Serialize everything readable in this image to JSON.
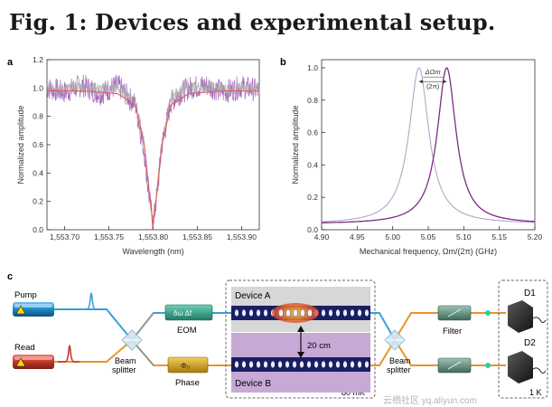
{
  "figure_title": "Fig. 1: Devices and experimental setup.",
  "watermark": "云栖社区 yq.aliyun.com",
  "chart_data": [
    {
      "panel": "a",
      "type": "line",
      "xlabel": "Wavelength (nm)",
      "ylabel": "Normalized amplitude",
      "xlim": [
        1553.68,
        1553.92
      ],
      "ylim": [
        0.0,
        1.2
      ],
      "xticks": [
        "1,553.70",
        "1,553.75",
        "1,553.80",
        "1,553.85",
        "1,553.90"
      ],
      "xtick_values": [
        1553.7,
        1553.75,
        1553.8,
        1553.85,
        1553.9
      ],
      "yticks": [
        "0.0",
        "0.2",
        "0.4",
        "0.6",
        "0.8",
        "1.0",
        "1.2"
      ],
      "ytick_values": [
        0.0,
        0.2,
        0.4,
        0.6,
        0.8,
        1.0,
        1.2
      ],
      "grid": false,
      "series": [
        {
          "color": "#9b59b6",
          "style": "noisy-data",
          "x": [
            1553.68,
            1553.7,
            1553.72,
            1553.74,
            1553.76,
            1553.77,
            1553.78,
            1553.79,
            1553.795,
            1553.8,
            1553.805,
            1553.81,
            1553.82,
            1553.83,
            1553.84,
            1553.86,
            1553.88,
            1553.9,
            1553.92
          ],
          "y": [
            1.0,
            0.97,
            1.02,
            0.96,
            1.02,
            0.95,
            0.88,
            0.55,
            0.25,
            0.04,
            0.28,
            0.6,
            0.9,
            0.96,
            1.0,
            1.02,
            0.97,
            1.01,
            0.98
          ]
        },
        {
          "color": "#aaaaaa",
          "style": "noisy-data",
          "x": [
            1553.68,
            1553.7,
            1553.72,
            1553.74,
            1553.76,
            1553.77,
            1553.78,
            1553.79,
            1553.795,
            1553.8,
            1553.805,
            1553.81,
            1553.82,
            1553.83,
            1553.84,
            1553.86,
            1553.88,
            1553.9,
            1553.92
          ],
          "y": [
            1.0,
            0.99,
            1.01,
            0.99,
            1.0,
            0.97,
            0.9,
            0.6,
            0.3,
            0.06,
            0.32,
            0.62,
            0.92,
            0.98,
            1.0,
            1.01,
            0.99,
            1.0,
            1.0
          ]
        },
        {
          "color": "#e05a5a",
          "style": "fit",
          "x": [
            1553.68,
            1553.72,
            1553.76,
            1553.78,
            1553.79,
            1553.795,
            1553.8,
            1553.805,
            1553.81,
            1553.82,
            1553.84,
            1553.88,
            1553.92
          ],
          "y": [
            0.98,
            0.98,
            0.96,
            0.88,
            0.6,
            0.3,
            0.03,
            0.3,
            0.6,
            0.88,
            0.96,
            0.98,
            0.98
          ]
        }
      ]
    },
    {
      "panel": "b",
      "type": "line",
      "xlabel": "Mechanical frequency, Ωm/(2π) (GHz)",
      "ylabel": "Normalized amplitude",
      "xlim": [
        4.9,
        5.2
      ],
      "ylim": [
        0.0,
        1.05
      ],
      "xticks": [
        "4.90",
        "4.95",
        "5.00",
        "5.05",
        "5.10",
        "5.15",
        "5.20"
      ],
      "xtick_values": [
        4.9,
        4.95,
        5.0,
        5.05,
        5.1,
        5.15,
        5.2
      ],
      "yticks": [
        "0.0",
        "0.2",
        "0.4",
        "0.6",
        "0.8",
        "1.0"
      ],
      "ytick_values": [
        0.0,
        0.2,
        0.4,
        0.6,
        0.8,
        1.0
      ],
      "grid": false,
      "annotation": {
        "numerator": "ΔΩm",
        "denominator": "(2π)",
        "x_from": 5.037,
        "x_to": 5.076,
        "y": 0.915
      },
      "series": [
        {
          "color": "#b9a3c8",
          "x0": 5.037,
          "hwhm": 0.017,
          "floor": 0.035
        },
        {
          "color": "#7a2d82",
          "x0": 5.076,
          "hwhm": 0.016,
          "floor": 0.035
        }
      ]
    }
  ],
  "setup_diagram": {
    "panel_label": "c",
    "pump_label": "Pump",
    "read_label": "Read",
    "beam_splitter_left": [
      "Beam",
      "splitter"
    ],
    "beam_splitter_right": [
      "Beam",
      "splitter"
    ],
    "eom_symbol": "δω  Δf",
    "eom_label": "EOM",
    "phase_symbol": "Φ₀",
    "phase_label": "Phase",
    "device_a_label": "Device A",
    "device_b_label": "Device B",
    "separation_label": "20 cm",
    "temp_inner": "80 mK",
    "filter_label": "Filter",
    "detector_1": "D1",
    "detector_2": "D2",
    "temp_outer": "1 K",
    "colors": {
      "pump_laser": "#1e88c8",
      "read_laser": "#c0392b",
      "eom": "#2e9e86",
      "phase": "#d6a520",
      "filter": "#5a8a7a",
      "device_a_bg": "#d7d7d7",
      "device_b_bg": "#c7a9d6",
      "waveguide": "#1a1f63",
      "detector": "#2b2b2b",
      "beam_top": "#3a9fd8",
      "beam_bottom": "#e8942a",
      "photon": "#2bd19a"
    }
  }
}
